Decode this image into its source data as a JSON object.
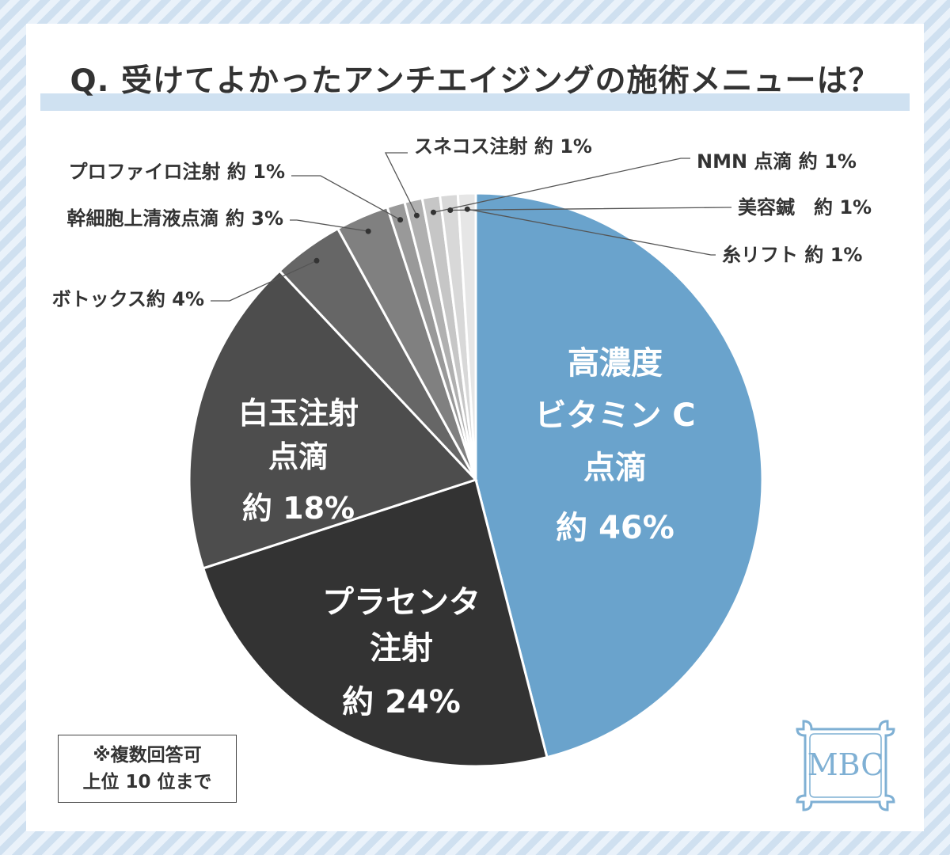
{
  "title": "Q. 受けてよかったアンチエイジングの施術メニューは？",
  "note": [
    "※複数回答可",
    "上位 10 位まで"
  ],
  "logo": {
    "text": "MBC"
  },
  "colors": {
    "accent": "#6aa3cc",
    "title_band": "#cfe1f1",
    "slice_colors": [
      "#6aa3cc",
      "#333333",
      "#4d4d4d",
      "#666666",
      "#808080",
      "#999999",
      "#b0b0b0",
      "#c6c6c6",
      "#d8d8d8",
      "#e6e6e6"
    ]
  },
  "chart_data": {
    "type": "pie",
    "title": "Q. 受けてよかったアンチエイジングの施術メニューは？",
    "start": "12 o'clock, clockwise",
    "legend": "none (callout labels)",
    "slices": [
      {
        "category": "高濃度ビタミンC点滴",
        "value": 46,
        "label_lines": [
          "高濃度",
          "ビタミン C",
          "点滴"
        ],
        "value_label": "約 46%"
      },
      {
        "category": "プラセンタ注射",
        "value": 24,
        "label_lines": [
          "プラセンタ",
          "注射"
        ],
        "value_label": "約 24%"
      },
      {
        "category": "白玉注射点滴",
        "value": 18,
        "label_lines": [
          "白玉注射",
          "点滴"
        ],
        "value_label": "約 18%"
      },
      {
        "category": "ボトックス",
        "value": 4,
        "label_lines": [
          "ボトックス約 4%"
        ]
      },
      {
        "category": "幹細胞上清液点滴",
        "value": 3,
        "label_lines": [
          "幹細胞上清液点滴 約 3%"
        ]
      },
      {
        "category": "プロファイロ注射",
        "value": 1,
        "label_lines": [
          "プロファイロ注射 約 1%"
        ]
      },
      {
        "category": "スネコス注射",
        "value": 1,
        "label_lines": [
          "スネコス注射 約 1%"
        ]
      },
      {
        "category": "NMN 点滴",
        "value": 1,
        "label_lines": [
          "NMN 点滴 約 1%"
        ]
      },
      {
        "category": "美容鍼",
        "value": 1,
        "label_lines": [
          "美容鍼　約 1%"
        ]
      },
      {
        "category": "糸リフト",
        "value": 1,
        "label_lines": [
          "糸リフト 約 1%"
        ]
      }
    ]
  }
}
